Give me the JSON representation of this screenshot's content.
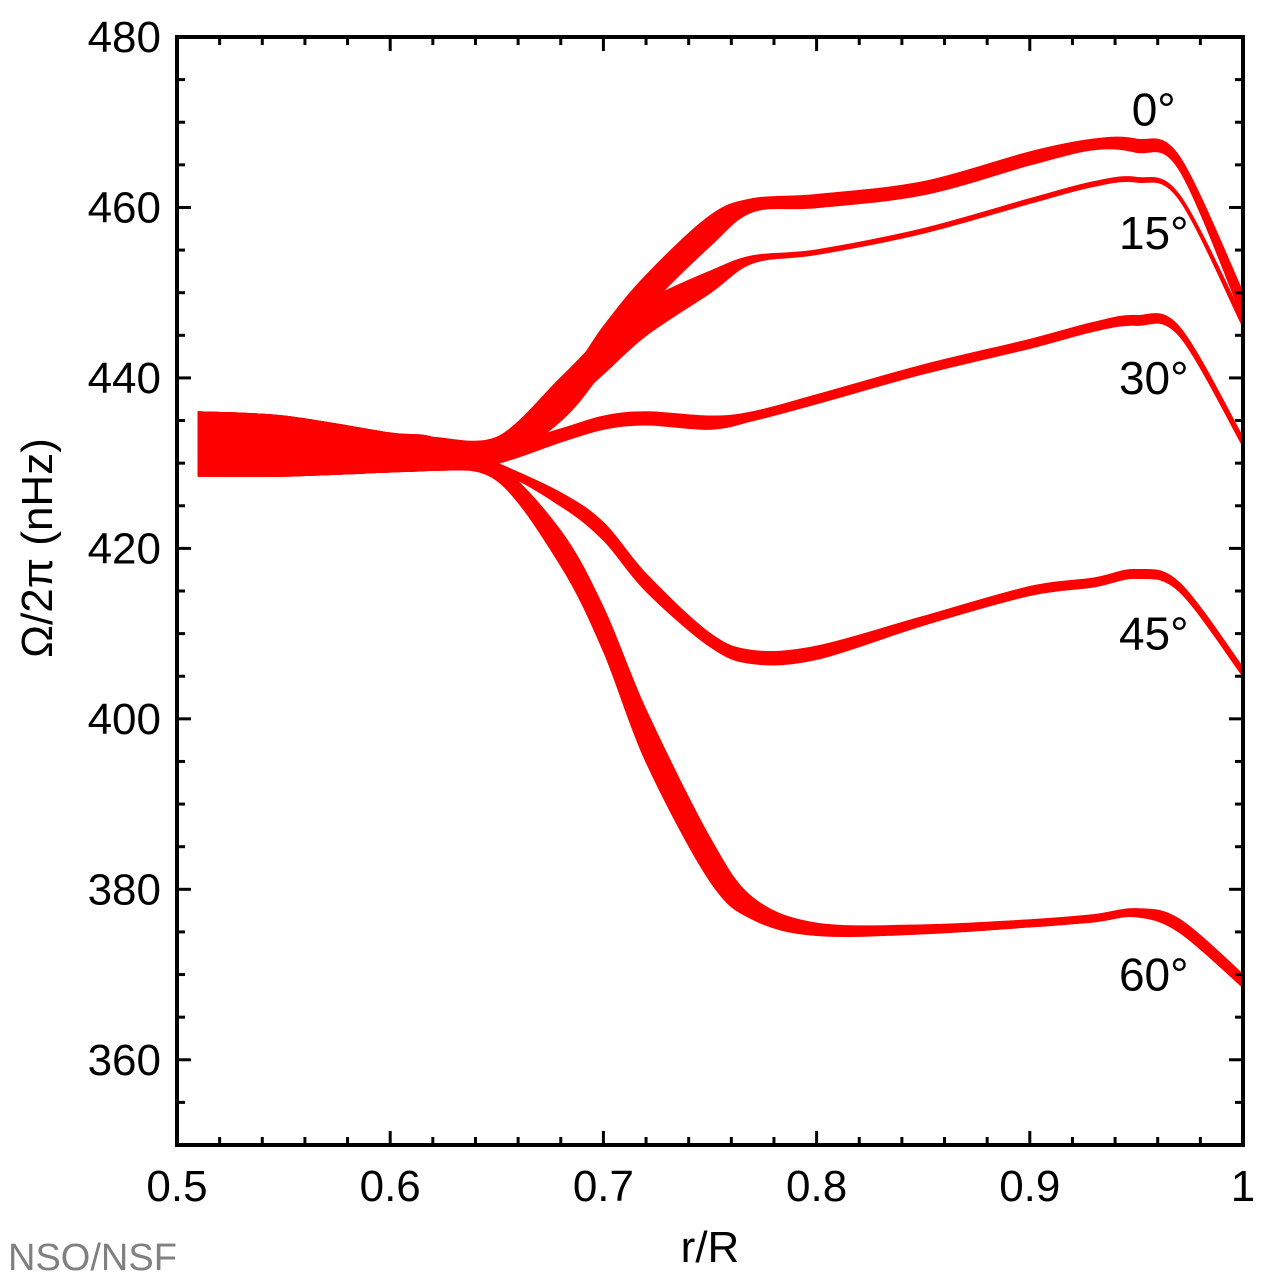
{
  "chart_data": {
    "type": "area",
    "xlabel": "r/R",
    "ylabel": "Ω/2π (nHz)",
    "xlim": [
      0.5,
      1.0
    ],
    "ylim": [
      350,
      480
    ],
    "x_ticks": [
      0.5,
      0.6,
      0.7,
      0.8,
      0.9,
      1.0
    ],
    "x_tick_labels": [
      "0.5",
      "0.6",
      "0.7",
      "0.8",
      "0.9",
      "1"
    ],
    "y_ticks": [
      360,
      380,
      400,
      420,
      440,
      460,
      480
    ],
    "y_tick_labels": [
      "360",
      "380",
      "400",
      "420",
      "440",
      "460",
      "480"
    ],
    "grid": false,
    "series_color": "#ff0000",
    "x": [
      0.51,
      0.55,
      0.6,
      0.62,
      0.65,
      0.68,
      0.7,
      0.72,
      0.75,
      0.77,
      0.8,
      0.85,
      0.9,
      0.93,
      0.95,
      0.97,
      1.0
    ],
    "series": [
      {
        "name": "0°",
        "upper": [
          436,
          435.5,
          433.5,
          433,
          433,
          439,
          446,
          452,
          459,
          461,
          461.5,
          463,
          466.5,
          468,
          468,
          466,
          450
        ],
        "lower": [
          428.5,
          428.5,
          429,
          429.2,
          430,
          435,
          441,
          448,
          455.5,
          459.5,
          460,
          461.5,
          465,
          466.8,
          466.5,
          464.5,
          447
        ]
      },
      {
        "name": "15°",
        "upper": [
          436,
          435.5,
          433.5,
          433,
          433,
          440,
          445,
          449,
          452.5,
          454.3,
          455,
          457.5,
          461,
          463,
          463.5,
          461.5,
          447
        ],
        "lower": [
          428.5,
          428.5,
          429,
          429.2,
          430,
          436,
          440.5,
          445,
          450,
          453.5,
          454.5,
          457,
          460.5,
          462.5,
          463,
          461,
          446
        ]
      },
      {
        "name": "30°",
        "upper": [
          436,
          435.5,
          433.5,
          433,
          432,
          434,
          435.5,
          436,
          435.5,
          436,
          438,
          441.5,
          444.5,
          446.5,
          447.3,
          446,
          433
        ],
        "lower": [
          428.5,
          428.5,
          429,
          429.2,
          430,
          432.5,
          434,
          434.5,
          434,
          435,
          437,
          440.5,
          443.5,
          445.5,
          446.2,
          445,
          432
        ]
      },
      {
        "name": "45°",
        "upper": [
          436,
          435.5,
          433.5,
          433,
          430,
          426.5,
          423,
          417,
          410,
          408,
          408.5,
          412,
          415.5,
          416.5,
          417.5,
          416,
          406
        ],
        "lower": [
          428.5,
          428.5,
          429,
          429.2,
          429,
          425,
          421,
          415,
          408.5,
          406.5,
          407,
          411,
          414.5,
          415.5,
          416.5,
          415,
          405
        ]
      },
      {
        "name": "60°",
        "upper": [
          436,
          435.5,
          433.5,
          433,
          430,
          422,
          413,
          401,
          386,
          379,
          376,
          375.8,
          376.4,
          377,
          377.7,
          376.5,
          370
        ],
        "lower": [
          428.5,
          428.5,
          429,
          429.2,
          428,
          418,
          408,
          395,
          381,
          376.5,
          374.6,
          374.8,
          375.6,
          376.2,
          376.8,
          375,
          368.5
        ]
      }
    ]
  },
  "labels": [
    {
      "text": "0°",
      "x": 0.96,
      "y": 471.5
    },
    {
      "text": "15°",
      "x": 0.96,
      "y": 457
    },
    {
      "text": "30°",
      "x": 0.96,
      "y": 440
    },
    {
      "text": "45°",
      "x": 0.96,
      "y": 410
    },
    {
      "text": "60°",
      "x": 0.96,
      "y": 370
    }
  ],
  "credit": "NSO/NSF"
}
